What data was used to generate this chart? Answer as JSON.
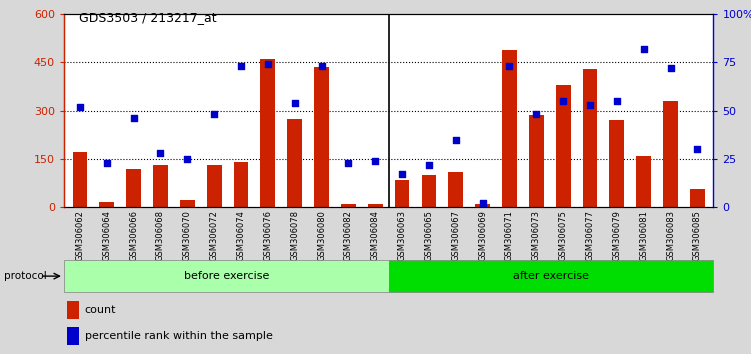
{
  "title": "GDS3503 / 213217_at",
  "categories": [
    "GSM306062",
    "GSM306064",
    "GSM306066",
    "GSM306068",
    "GSM306070",
    "GSM306072",
    "GSM306074",
    "GSM306076",
    "GSM306078",
    "GSM306080",
    "GSM306082",
    "GSM306084",
    "GSM306063",
    "GSM306065",
    "GSM306067",
    "GSM306069",
    "GSM306071",
    "GSM306073",
    "GSM306075",
    "GSM306077",
    "GSM306079",
    "GSM306081",
    "GSM306083",
    "GSM306085"
  ],
  "bar_values": [
    170,
    15,
    120,
    130,
    22,
    130,
    140,
    460,
    275,
    435,
    10,
    10,
    85,
    100,
    110,
    10,
    490,
    285,
    380,
    430,
    270,
    160,
    330,
    55
  ],
  "percentile_values": [
    52,
    23,
    46,
    28,
    25,
    48,
    73,
    74,
    54,
    73,
    23,
    24,
    17,
    22,
    35,
    2,
    73,
    48,
    55,
    53,
    55,
    82,
    72,
    30
  ],
  "bar_color": "#cc2200",
  "dot_color": "#0000cc",
  "before_count": 12,
  "after_count": 12,
  "before_label": "before exercise",
  "after_label": "after exercise",
  "before_color": "#aaffaa",
  "after_color": "#00dd00",
  "protocol_label": "protocol",
  "left_yticks": [
    0,
    150,
    300,
    450,
    600
  ],
  "right_yticks": [
    0,
    25,
    50,
    75,
    100
  ],
  "right_yticklabels": [
    "0",
    "25",
    "50",
    "75",
    "100%"
  ],
  "ylim_left": [
    0,
    600
  ],
  "ylim_right": [
    0,
    100
  ],
  "bg_color": "#d8d8d8",
  "plot_bg_color": "#ffffff",
  "legend_count_label": "count",
  "legend_pct_label": "percentile rank within the sample"
}
